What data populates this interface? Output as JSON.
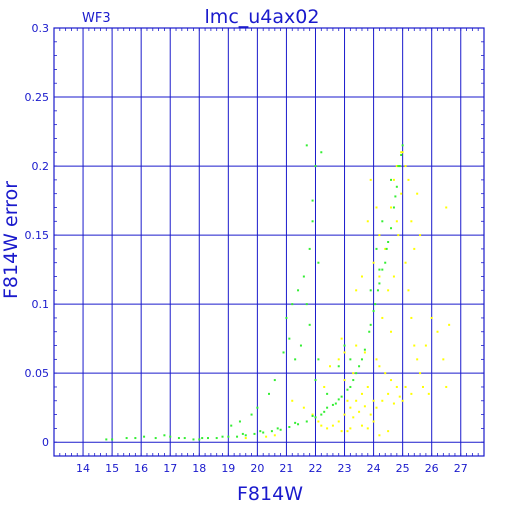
{
  "chart_data": {
    "type": "scatter",
    "title": "lmc_u4ax02",
    "corner_label": "WF3",
    "xlabel": "F814W",
    "ylabel": "F814W error",
    "xlim": [
      13,
      27.8
    ],
    "ylim": [
      -0.01,
      0.3
    ],
    "x_ticks": [
      "14",
      "15",
      "16",
      "17",
      "18",
      "19",
      "20",
      "21",
      "22",
      "23",
      "24",
      "25",
      "26",
      "27"
    ],
    "y_ticks": [
      "0",
      "0.05",
      "0.1",
      "0.15",
      "0.2",
      "0.25",
      "0.3"
    ],
    "grid": true,
    "series": [
      {
        "color": "#ffff00",
        "points": [
          [
            23.9,
            0.19
          ],
          [
            24.1,
            0.17
          ],
          [
            24.2,
            0.12
          ],
          [
            24.4,
            0.14
          ],
          [
            24.3,
            0.09
          ],
          [
            24.5,
            0.11
          ],
          [
            24.6,
            0.08
          ],
          [
            24.7,
            0.12
          ],
          [
            24.8,
            0.16
          ],
          [
            24.9,
            0.2
          ],
          [
            25.0,
            0.21
          ],
          [
            24.95,
            0.18
          ],
          [
            24.85,
            0.15
          ],
          [
            25.1,
            0.13
          ],
          [
            25.2,
            0.11
          ],
          [
            25.3,
            0.09
          ],
          [
            25.4,
            0.07
          ],
          [
            25.5,
            0.06
          ],
          [
            25.6,
            0.05
          ],
          [
            25.8,
            0.07
          ],
          [
            26.0,
            0.09
          ],
          [
            26.2,
            0.08
          ],
          [
            26.4,
            0.06
          ],
          [
            26.5,
            0.04
          ],
          [
            26.6,
            0.085
          ],
          [
            25.7,
            0.04
          ],
          [
            25.9,
            0.035
          ],
          [
            25.0,
            0.03
          ],
          [
            24.8,
            0.04
          ],
          [
            24.6,
            0.045
          ],
          [
            24.4,
            0.05
          ],
          [
            24.2,
            0.055
          ],
          [
            24.0,
            0.03
          ],
          [
            23.8,
            0.04
          ],
          [
            23.6,
            0.035
          ],
          [
            23.4,
            0.03
          ],
          [
            23.2,
            0.025
          ],
          [
            23.0,
            0.02
          ],
          [
            22.8,
            0.015
          ],
          [
            22.6,
            0.012
          ],
          [
            22.4,
            0.01
          ],
          [
            22.2,
            0.012
          ],
          [
            23.1,
            0.03
          ],
          [
            23.3,
            0.018
          ],
          [
            23.5,
            0.022
          ],
          [
            23.7,
            0.026
          ],
          [
            23.9,
            0.02
          ],
          [
            24.1,
            0.025
          ],
          [
            24.3,
            0.03
          ],
          [
            24.5,
            0.035
          ],
          [
            24.7,
            0.028
          ],
          [
            24.9,
            0.033
          ],
          [
            25.1,
            0.04
          ],
          [
            25.3,
            0.035
          ],
          [
            24.0,
            0.015
          ],
          [
            23.6,
            0.012
          ],
          [
            23.2,
            0.01
          ],
          [
            22.9,
            0.008
          ],
          [
            23.0,
            0.045
          ],
          [
            23.3,
            0.05
          ],
          [
            22.5,
            0.055
          ],
          [
            22.8,
            0.06
          ],
          [
            23.0,
            0.065
          ],
          [
            22.3,
            0.04
          ],
          [
            20.6,
            0.005
          ],
          [
            21.2,
            0.03
          ],
          [
            21.6,
            0.025
          ],
          [
            21.9,
            0.02
          ],
          [
            22.1,
            0.015
          ],
          [
            25.5,
            0.18
          ],
          [
            25.6,
            0.15
          ],
          [
            25.3,
            0.16
          ],
          [
            25.1,
            0.2
          ],
          [
            24.95,
            0.21
          ],
          [
            26.5,
            0.17
          ],
          [
            19.6,
            0.003
          ],
          [
            20.3,
            0.004
          ],
          [
            24.2,
            0.005
          ],
          [
            24.5,
            0.008
          ],
          [
            23.8,
            0.01
          ],
          [
            22.9,
            0.075
          ],
          [
            23.4,
            0.07
          ],
          [
            23.7,
            0.065
          ],
          [
            24.1,
            0.06
          ],
          [
            23.1,
            0.008
          ],
          [
            24.7,
            0.19
          ],
          [
            24.8,
            0.2
          ],
          [
            24.6,
            0.17
          ],
          [
            25.2,
            0.19
          ],
          [
            25.4,
            0.14
          ],
          [
            23.6,
            0.12
          ],
          [
            23.4,
            0.11
          ],
          [
            23.8,
            0.16
          ],
          [
            24.0,
            0.13
          ],
          [
            24.2,
            0.15
          ]
        ]
      },
      {
        "color": "#33ee33",
        "points": [
          [
            14.8,
            0.002
          ],
          [
            15.0,
            0.002
          ],
          [
            15.8,
            0.003
          ],
          [
            16.5,
            0.003
          ],
          [
            17.0,
            0.004
          ],
          [
            17.5,
            0.003
          ],
          [
            17.8,
            0.002
          ],
          [
            18.0,
            0.002
          ],
          [
            18.3,
            0.003
          ],
          [
            18.6,
            0.003
          ],
          [
            19.0,
            0.004
          ],
          [
            19.3,
            0.004
          ],
          [
            19.6,
            0.005
          ],
          [
            19.9,
            0.006
          ],
          [
            20.2,
            0.007
          ],
          [
            20.5,
            0.008
          ],
          [
            20.8,
            0.009
          ],
          [
            21.1,
            0.011
          ],
          [
            21.4,
            0.013
          ],
          [
            21.7,
            0.015
          ],
          [
            22.0,
            0.018
          ],
          [
            22.3,
            0.022
          ],
          [
            22.6,
            0.027
          ],
          [
            22.9,
            0.033
          ],
          [
            23.1,
            0.038
          ],
          [
            23.3,
            0.045
          ],
          [
            23.5,
            0.055
          ],
          [
            23.7,
            0.067
          ],
          [
            23.85,
            0.08
          ],
          [
            24.0,
            0.095
          ],
          [
            24.15,
            0.11
          ],
          [
            24.3,
            0.125
          ],
          [
            24.45,
            0.14
          ],
          [
            24.6,
            0.155
          ],
          [
            24.7,
            0.17
          ],
          [
            24.8,
            0.185
          ],
          [
            24.9,
            0.2
          ],
          [
            25.0,
            0.215
          ],
          [
            18.1,
            0.003
          ],
          [
            18.8,
            0.004
          ],
          [
            19.5,
            0.006
          ],
          [
            20.1,
            0.008
          ],
          [
            20.7,
            0.01
          ],
          [
            21.3,
            0.014
          ],
          [
            21.9,
            0.019
          ],
          [
            22.4,
            0.025
          ],
          [
            22.8,
            0.031
          ],
          [
            23.2,
            0.04
          ],
          [
            23.6,
            0.06
          ],
          [
            23.9,
            0.085
          ],
          [
            24.2,
            0.115
          ],
          [
            24.5,
            0.145
          ],
          [
            24.75,
            0.178
          ],
          [
            24.95,
            0.208
          ],
          [
            22.2,
            0.02
          ],
          [
            22.7,
            0.028
          ],
          [
            23.4,
            0.05
          ],
          [
            24.05,
            0.1
          ],
          [
            21.0,
            0.09
          ],
          [
            21.2,
            0.1
          ],
          [
            21.4,
            0.11
          ],
          [
            21.6,
            0.12
          ],
          [
            21.8,
            0.14
          ],
          [
            21.9,
            0.16
          ],
          [
            22.0,
            0.2
          ],
          [
            22.2,
            0.21
          ],
          [
            21.7,
            0.215
          ],
          [
            21.1,
            0.075
          ],
          [
            20.9,
            0.065
          ],
          [
            20.6,
            0.045
          ],
          [
            20.4,
            0.035
          ],
          [
            20.0,
            0.025
          ],
          [
            19.8,
            0.02
          ],
          [
            19.4,
            0.015
          ],
          [
            19.1,
            0.012
          ],
          [
            22.0,
            0.045
          ],
          [
            22.4,
            0.035
          ],
          [
            22.8,
            0.055
          ],
          [
            23.0,
            0.07
          ],
          [
            23.2,
            0.06
          ],
          [
            21.5,
            0.07
          ],
          [
            21.8,
            0.085
          ],
          [
            22.1,
            0.06
          ],
          [
            16.1,
            0.004
          ],
          [
            16.8,
            0.005
          ],
          [
            17.3,
            0.003
          ],
          [
            15.5,
            0.003
          ],
          [
            21.9,
            0.175
          ],
          [
            22.1,
            0.13
          ],
          [
            21.7,
            0.1
          ],
          [
            21.3,
            0.06
          ],
          [
            24.1,
            0.14
          ],
          [
            24.3,
            0.16
          ],
          [
            24.4,
            0.13
          ],
          [
            24.2,
            0.125
          ],
          [
            23.9,
            0.11
          ],
          [
            24.6,
            0.19
          ],
          [
            24.85,
            0.2
          ]
        ]
      }
    ]
  }
}
